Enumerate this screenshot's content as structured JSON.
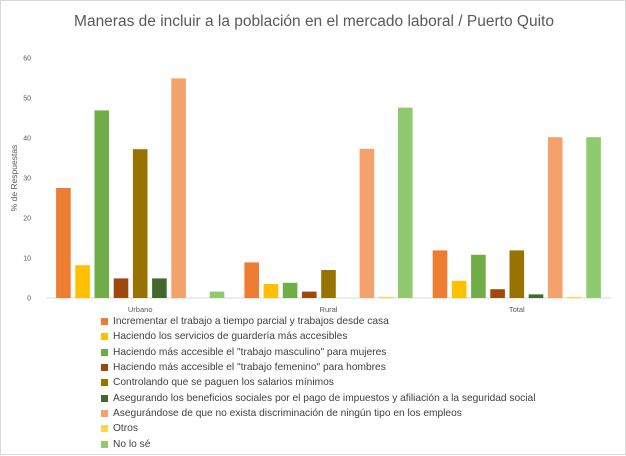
{
  "chart_data": {
    "type": "bar",
    "title": "Maneras de incluir a la población en el mercado laboral / Puerto Quito",
    "xlabel": "",
    "ylabel": "% de Respuestas",
    "ylim": [
      0,
      60
    ],
    "yticks": [
      0,
      10,
      20,
      30,
      40,
      50,
      60
    ],
    "grid": false,
    "legend_position": "bottom",
    "categories": [
      "Urbano",
      "Rural",
      "Total"
    ],
    "series": [
      {
        "name": "Incrementar el trabajo a tiempo parcial y trabajos desde casa",
        "color": "#ED7D31",
        "values": [
          27.5,
          8.9,
          11.9
        ]
      },
      {
        "name": "Haciendo los servicios de guardería más accesibles",
        "color": "#FFC000",
        "values": [
          8.2,
          3.5,
          4.3
        ]
      },
      {
        "name": "Haciendo más accesible el \"trabajo masculino\" para mujeres",
        "color": "#70AD47",
        "values": [
          46.9,
          3.8,
          10.8
        ]
      },
      {
        "name": "Haciendo más accesible el \"trabajo femenino\" para hombres",
        "color": "#9E480E",
        "values": [
          4.9,
          1.6,
          2.2
        ]
      },
      {
        "name": "Controlando que se paguen los salarios mínimos",
        "color": "#997300",
        "values": [
          37.2,
          7.0,
          11.9
        ]
      },
      {
        "name": "Asegurando los beneficios sociales por el pago de impuestos y afiliación a la seguridad social",
        "color": "#43682B",
        "values": [
          4.9,
          0,
          0.9
        ]
      },
      {
        "name": "Asegurándose de que no exista discriminación de ningún tipo en los empleos",
        "color": "#F4A16C",
        "values": [
          54.9,
          37.3,
          40.2
        ]
      },
      {
        "name": "Otros",
        "color": "#FFD34D",
        "values": [
          0,
          0.3,
          0.3
        ]
      },
      {
        "name": "No lo sé",
        "color": "#8FCB6E",
        "values": [
          1.6,
          47.6,
          40.2
        ]
      }
    ]
  }
}
